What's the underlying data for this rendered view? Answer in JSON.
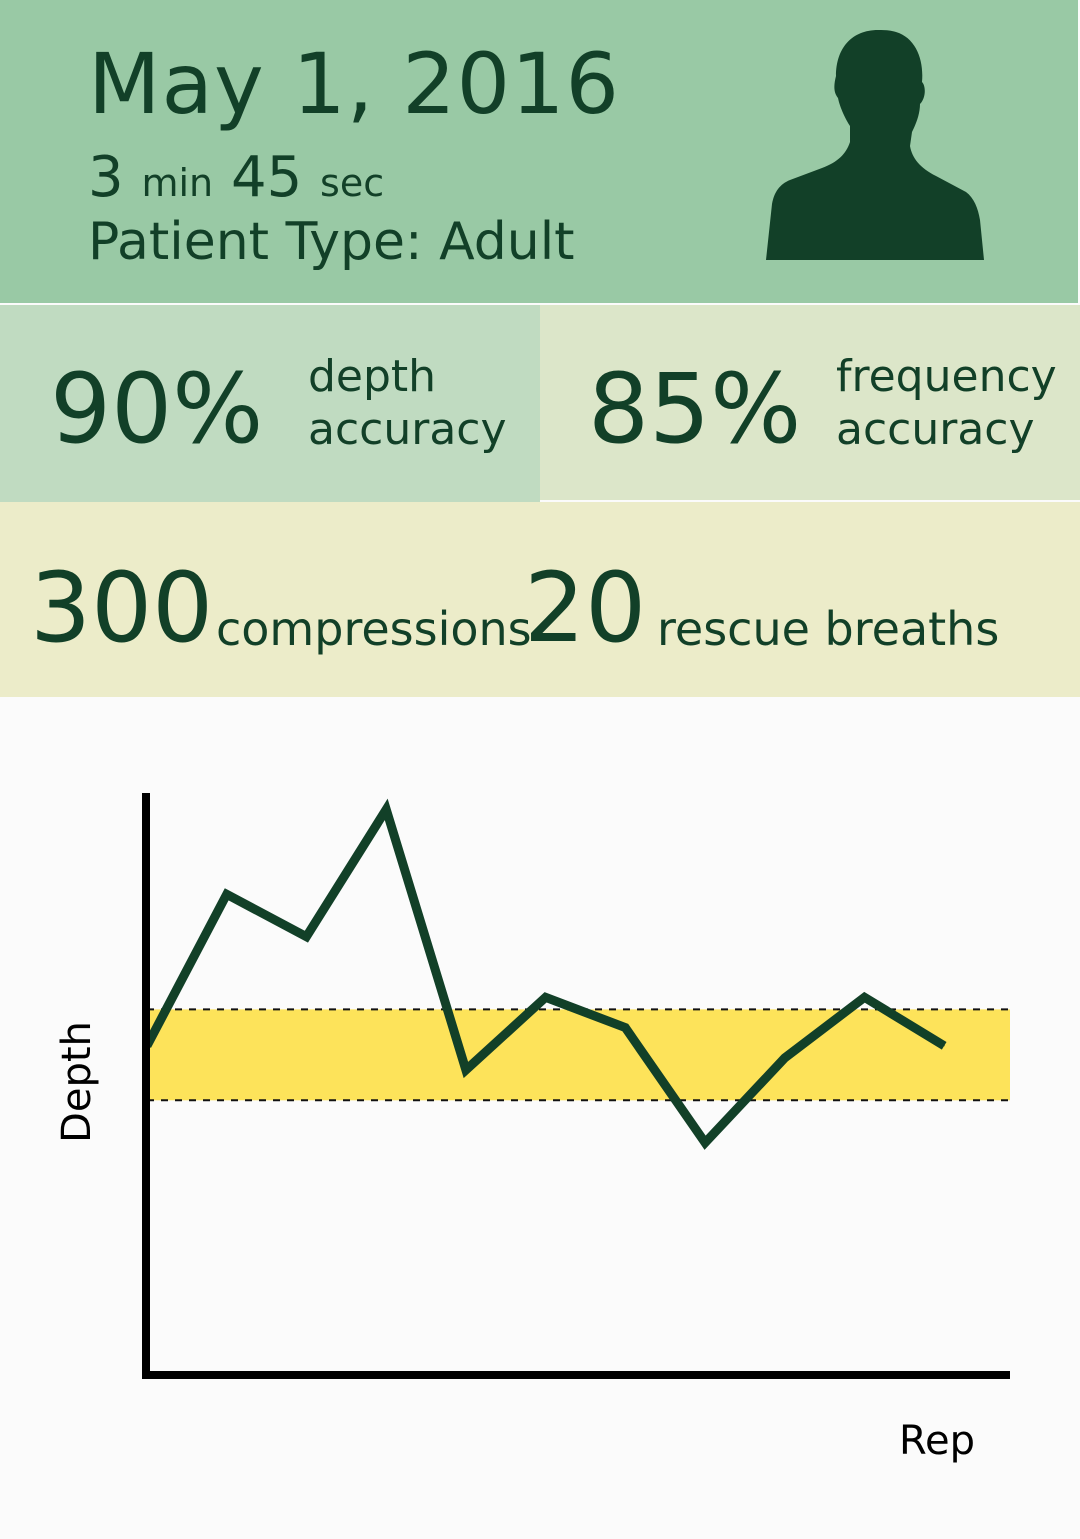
{
  "session": {
    "date": "May 1, 2016",
    "duration": {
      "minutes": "3",
      "minutes_unit": "min",
      "seconds": "45",
      "seconds_unit": "sec"
    },
    "patient_type": "Patient Type: Adult"
  },
  "stats": {
    "depth": {
      "value": "90%",
      "label_line1": "depth",
      "label_line2": "accuracy"
    },
    "frequency": {
      "value": "85%",
      "label_line1": "frequency",
      "label_line2": "accuracy"
    }
  },
  "counts": {
    "compressions": {
      "value": "300",
      "label": "compressions"
    },
    "breaths": {
      "value": "20",
      "label": "rescue breaths"
    }
  },
  "colors": {
    "header_bg": "#99c9a5",
    "depth_bg": "#c0dbc1",
    "frequency_bg": "#dce6c9",
    "counts_bg": "#ececc9",
    "text": "#124028",
    "target_band": "#fde35a"
  },
  "icons": {
    "avatar": "person-silhouette-icon"
  },
  "chart_data": {
    "type": "line",
    "title": "",
    "xlabel": "Rep",
    "ylabel": "Depth",
    "x": [
      1,
      2,
      3,
      4,
      5,
      6,
      7,
      8,
      9,
      10,
      11
    ],
    "series": [
      {
        "values": [
          54,
          79,
          72,
          93,
          50,
          62,
          57,
          38,
          52,
          62,
          54
        ]
      }
    ],
    "target_band": [
      45,
      60
    ],
    "ylim": [
      0,
      100
    ],
    "xlim": [
      1,
      11.8
    ],
    "grid": false,
    "legend": "none"
  }
}
